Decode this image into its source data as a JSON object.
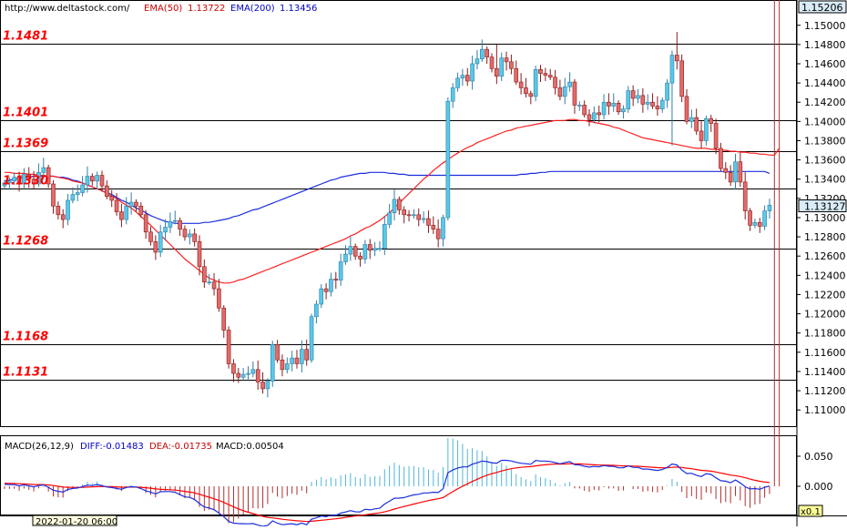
{
  "header": {
    "site_url": "http://www.deltastock.com/",
    "ema50_label": "EMA(50)",
    "ema50_value": "1.13722",
    "ema200_label": "EMA(200)",
    "ema200_value": "1.13456"
  },
  "colors": {
    "bull_fill": "#59c8e8",
    "bull_border": "#2f7fa6",
    "bear_fill": "#e26b6b",
    "bear_border": "#8b1a1a",
    "ema50": "#ff2020",
    "ema200": "#1a2ee0",
    "level_text": "#ff0000",
    "level_line": "#000000",
    "price_box_bg": "#d9ecf7"
  },
  "price_panel": {
    "top_value_label": "1.15206",
    "current_price_label": "1.13127",
    "current_price": 1.13127
  },
  "levels": [
    {
      "label": "1.1481",
      "value": 1.1481
    },
    {
      "label": "1.1401",
      "value": 1.1401
    },
    {
      "label": "1.1369",
      "value": 1.1369
    },
    {
      "label": "1.1330",
      "value": 1.133
    },
    {
      "label": "1.1268",
      "value": 1.1268
    },
    {
      "label": "1.1168",
      "value": 1.1168
    },
    {
      "label": "1.1131",
      "value": 1.1131
    }
  ],
  "macd_panel": {
    "title": "MACD(26,12,9)",
    "diff_label": "DIFF:-0.01483",
    "dea_label": "DEA:-0.01735",
    "macd_label": "MACD:0.00504",
    "tick_labels": [
      "0.050",
      "0.000"
    ],
    "zoom_label": "x0.1"
  },
  "time_axis": {
    "first_label": "2022-01-20 06:00"
  },
  "chart_data": {
    "type": "candlestick",
    "instrument_hint": "EUR/USD",
    "indicators": [
      "EMA(50)",
      "EMA(200)",
      "MACD(26,12,9)"
    ],
    "y_ticks": [
      "1.15000",
      "1.14800",
      "1.14600",
      "1.14400",
      "1.14200",
      "1.14000",
      "1.13800",
      "1.13600",
      "1.13400",
      "1.13200",
      "1.13000",
      "1.12800",
      "1.12600",
      "1.12400",
      "1.12200",
      "1.12000",
      "1.11800",
      "1.11600",
      "1.11400",
      "1.11200",
      "1.11000"
    ],
    "ylim": [
      1.1085,
      1.15206
    ],
    "closes": [
      1.1336,
      1.1338,
      1.1342,
      1.1335,
      1.1345,
      1.134,
      1.1335,
      1.1347,
      1.1352,
      1.1335,
      1.1312,
      1.1303,
      1.1298,
      1.1318,
      1.1324,
      1.1326,
      1.1334,
      1.1343,
      1.1338,
      1.1344,
      1.1333,
      1.1322,
      1.1318,
      1.1306,
      1.1298,
      1.1312,
      1.1316,
      1.1312,
      1.1303,
      1.1285,
      1.1275,
      1.1264,
      1.1285,
      1.129,
      1.1296,
      1.1297,
      1.1288,
      1.128,
      1.1283,
      1.1275,
      1.1249,
      1.1233,
      1.1233,
      1.1226,
      1.1206,
      1.1183,
      1.1148,
      1.1138,
      1.1134,
      1.1137,
      1.1138,
      1.1142,
      1.1129,
      1.1122,
      1.113,
      1.1168,
      1.1152,
      1.1142,
      1.1148,
      1.1154,
      1.1148,
      1.1163,
      1.1152,
      1.1197,
      1.121,
      1.1226,
      1.1223,
      1.1236,
      1.1235,
      1.1254,
      1.1262,
      1.127,
      1.126,
      1.1257,
      1.1272,
      1.1266,
      1.1268,
      1.1268,
      1.1293,
      1.1305,
      1.1319,
      1.1308,
      1.1303,
      1.1302,
      1.1303,
      1.1298,
      1.1299,
      1.1292,
      1.1288,
      1.1278,
      1.13,
      1.1421,
      1.1435,
      1.1445,
      1.1448,
      1.1442,
      1.146,
      1.1465,
      1.1475,
      1.1467,
      1.1455,
      1.1447,
      1.1466,
      1.1462,
      1.1455,
      1.1441,
      1.1435,
      1.1429,
      1.1426,
      1.1454,
      1.145,
      1.1448,
      1.1446,
      1.1435,
      1.1426,
      1.1436,
      1.1441,
      1.1417,
      1.1417,
      1.1407,
      1.1402,
      1.1409,
      1.1407,
      1.142,
      1.1416,
      1.1419,
      1.141,
      1.1413,
      1.1432,
      1.1424,
      1.1427,
      1.1418,
      1.142,
      1.1416,
      1.1413,
      1.1422,
      1.144,
      1.1469,
      1.1463,
      1.1426,
      1.14,
      1.1404,
      1.139,
      1.138,
      1.1403,
      1.1398,
      1.1372,
      1.1351,
      1.1347,
      1.1337,
      1.1358,
      1.1337,
      1.1307,
      1.1292,
      1.1295,
      1.1291,
      1.1307,
      1.1313
    ],
    "ema50": [
      1.1347,
      1.1347,
      1.1346,
      1.1346,
      1.1346,
      1.1345,
      1.1345,
      1.1344,
      1.1344,
      1.1343,
      1.1343,
      1.1342,
      1.1341,
      1.134,
      1.1338,
      1.1337,
      1.1336,
      1.1334,
      1.1332,
      1.133,
      1.1328,
      1.1325,
      1.1322,
      1.132,
      1.1316,
      1.1313,
      1.131,
      1.1306,
      1.1301,
      1.1297,
      1.1292,
      1.1287,
      1.1282,
      1.1277,
      1.1272,
      1.1267,
      1.1262,
      1.1257,
      1.1253,
      1.1249,
      1.1245,
      1.1241,
      1.1237,
      1.1235,
      1.1233,
      1.1232,
      1.1232,
      1.1233,
      1.1235,
      1.1236,
      1.1238,
      1.124,
      1.1242,
      1.1244,
      1.1246,
      1.1248,
      1.125,
      1.1252,
      1.1254,
      1.1256,
      1.1258,
      1.126,
      1.1262,
      1.1264,
      1.1266,
      1.1268,
      1.127,
      1.1272,
      1.1274,
      1.1276,
      1.1278,
      1.1281,
      1.1283,
      1.1286,
      1.1289,
      1.1291,
      1.1294,
      1.1297,
      1.1301,
      1.1305,
      1.131,
      1.1315,
      1.132,
      1.1325,
      1.133,
      1.1335,
      1.134,
      1.1344,
      1.1349,
      1.1353,
      1.1357,
      1.136,
      1.1364,
      1.1367,
      1.137,
      1.1373,
      1.1375,
      1.1378,
      1.138,
      1.1382,
      1.1384,
      1.1386,
      1.1388,
      1.139,
      1.1391,
      1.1393,
      1.1394,
      1.1395,
      1.1396,
      1.1397,
      1.1398,
      1.1399,
      1.14,
      1.1401,
      1.1401,
      1.1401,
      1.1402,
      1.1402,
      1.1401,
      1.1401,
      1.14,
      1.1399,
      1.1398,
      1.1397,
      1.1396,
      1.1394,
      1.1393,
      1.1391,
      1.1389,
      1.1387,
      1.1385,
      1.1383,
      1.1382,
      1.1381,
      1.138,
      1.1379,
      1.1378,
      1.1377,
      1.1376,
      1.1375,
      1.1374,
      1.1373,
      1.1372,
      1.1372,
      1.1372,
      1.1371,
      1.1371,
      1.137,
      1.137,
      1.1369,
      1.1369,
      1.1368,
      1.1368,
      1.1367,
      1.1367,
      1.1366,
      1.1366,
      1.1365,
      1.1365,
      1.1372
    ],
    "ema200": [
      1.1338,
      1.1339,
      1.134,
      1.1341,
      1.1342,
      1.1342,
      1.1343,
      1.1343,
      1.1343,
      1.1343,
      1.1343,
      1.1342,
      1.1342,
      1.1341,
      1.1339,
      1.1338,
      1.1336,
      1.1334,
      1.1332,
      1.133,
      1.1328,
      1.1326,
      1.1324,
      1.1321,
      1.1318,
      1.1316,
      1.1313,
      1.131,
      1.1308,
      1.1305,
      1.1302,
      1.13,
      1.1298,
      1.1296,
      1.1295,
      1.1294,
      1.1294,
      1.1294,
      1.1294,
      1.1294,
      1.1294,
      1.1295,
      1.1295,
      1.1296,
      1.1297,
      1.1298,
      1.1299,
      1.1301,
      1.1302,
      1.1304,
      1.1306,
      1.1308,
      1.1309,
      1.1311,
      1.1313,
      1.1315,
      1.1317,
      1.1319,
      1.1321,
      1.1323,
      1.1325,
      1.1327,
      1.1329,
      1.1331,
      1.1333,
      1.1335,
      1.1337,
      1.1339,
      1.134,
      1.1342,
      1.1343,
      1.1344,
      1.1345,
      1.1346,
      1.1346,
      1.1347,
      1.1347,
      1.1347,
      1.1347,
      1.1346,
      1.1346,
      1.1345,
      1.1345,
      1.1344,
      1.1344,
      1.1344,
      1.1344,
      1.1344,
      1.1344,
      1.1344,
      1.1344,
      1.1344,
      1.1344,
      1.1344,
      1.1344,
      1.1344,
      1.1344,
      1.1344,
      1.1344,
      1.1344,
      1.1344,
      1.1344,
      1.1344,
      1.1344,
      1.1344,
      1.1344,
      1.1345,
      1.1345,
      1.1346,
      1.1346,
      1.1347,
      1.1347,
      1.1348,
      1.1348,
      1.1348,
      1.1348,
      1.1348,
      1.1348,
      1.1348,
      1.1348,
      1.1348,
      1.1348,
      1.1348,
      1.1348,
      1.1348,
      1.1348,
      1.1348,
      1.1348,
      1.1348,
      1.1348,
      1.1348,
      1.1348,
      1.1348,
      1.1348,
      1.1348,
      1.1348,
      1.1348,
      1.1348,
      1.1348,
      1.1348,
      1.1348,
      1.1348,
      1.1348,
      1.1348,
      1.1348,
      1.1348,
      1.1348,
      1.1348,
      1.1348,
      1.1348,
      1.1348,
      1.1348,
      1.1348,
      1.1348,
      1.1348,
      1.1348,
      1.1348,
      1.1346
    ]
  }
}
